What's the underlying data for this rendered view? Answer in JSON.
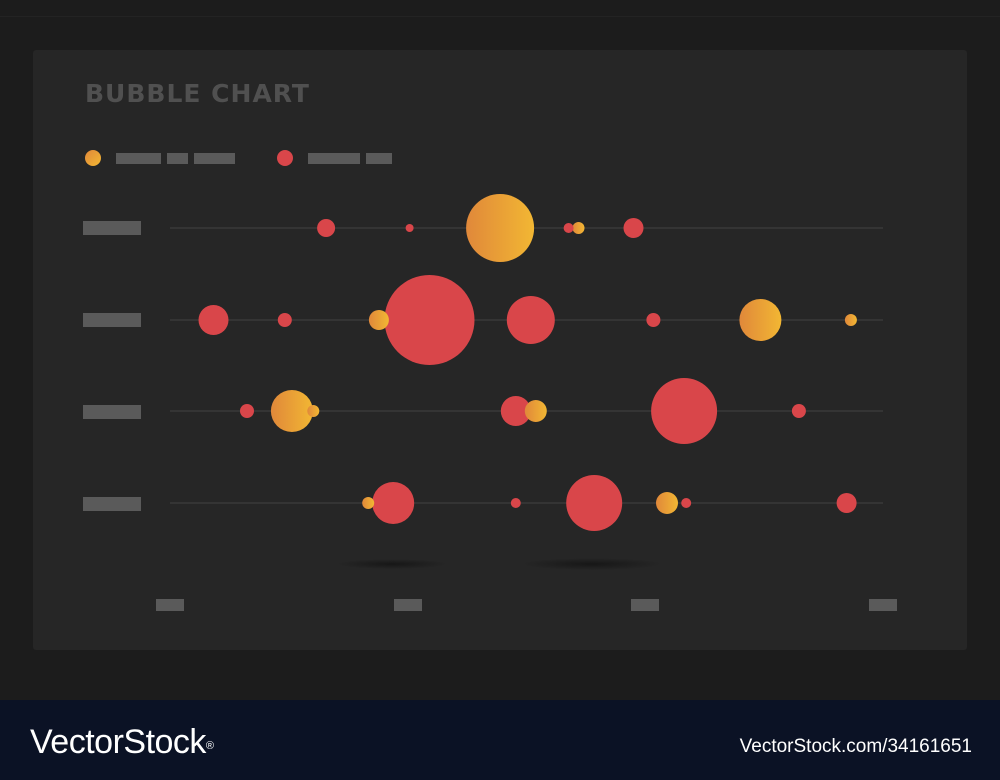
{
  "colors": {
    "series_a_start": "#e0883a",
    "series_a_end": "#f2b733",
    "series_b": "#d9464a",
    "placeholder_bar": "#5a5a5a",
    "line": "#3c3c3c",
    "title": "#505050"
  },
  "chart_data": {
    "type": "scatter",
    "title": "BUBBLE CHART",
    "xlabel": "",
    "ylabel": "",
    "grid": false,
    "legend_placement": "top-left",
    "rows": 4,
    "x_axis_ticks": 4,
    "xlim": [
      0,
      100
    ],
    "series": [
      {
        "key": "a",
        "points": [
          {
            "row": 1,
            "x": 46.3,
            "size": 34
          },
          {
            "row": 1,
            "x": 57.3,
            "size": 6
          },
          {
            "row": 2,
            "x": 29.3,
            "size": 10
          },
          {
            "row": 2,
            "x": 82.8,
            "size": 21
          },
          {
            "row": 2,
            "x": 95.5,
            "size": 6
          },
          {
            "row": 3,
            "x": 17.1,
            "size": 21
          },
          {
            "row": 3,
            "x": 20.1,
            "size": 6
          },
          {
            "row": 3,
            "x": 51.3,
            "size": 11
          },
          {
            "row": 4,
            "x": 27.8,
            "size": 6
          },
          {
            "row": 4,
            "x": 69.7,
            "size": 11
          }
        ]
      },
      {
        "key": "b",
        "points": [
          {
            "row": 1,
            "x": 21.9,
            "size": 9
          },
          {
            "row": 1,
            "x": 33.6,
            "size": 4
          },
          {
            "row": 1,
            "x": 55.9,
            "size": 5
          },
          {
            "row": 1,
            "x": 65.0,
            "size": 10
          },
          {
            "row": 2,
            "x": 6.1,
            "size": 15
          },
          {
            "row": 2,
            "x": 16.1,
            "size": 7
          },
          {
            "row": 2,
            "x": 36.4,
            "size": 45
          },
          {
            "row": 2,
            "x": 50.6,
            "size": 24
          },
          {
            "row": 2,
            "x": 67.8,
            "size": 7
          },
          {
            "row": 3,
            "x": 10.8,
            "size": 7
          },
          {
            "row": 3,
            "x": 48.5,
            "size": 15
          },
          {
            "row": 3,
            "x": 72.1,
            "size": 33
          },
          {
            "row": 3,
            "x": 88.2,
            "size": 7
          },
          {
            "row": 4,
            "x": 31.3,
            "size": 21
          },
          {
            "row": 4,
            "x": 48.5,
            "size": 5
          },
          {
            "row": 4,
            "x": 59.5,
            "size": 28
          },
          {
            "row": 4,
            "x": 72.4,
            "size": 5
          },
          {
            "row": 4,
            "x": 94.9,
            "size": 10
          }
        ]
      }
    ]
  },
  "footer": {
    "brand": "VectorStock",
    "trademark": "®",
    "image_id": "VectorStock.com/34161651"
  }
}
